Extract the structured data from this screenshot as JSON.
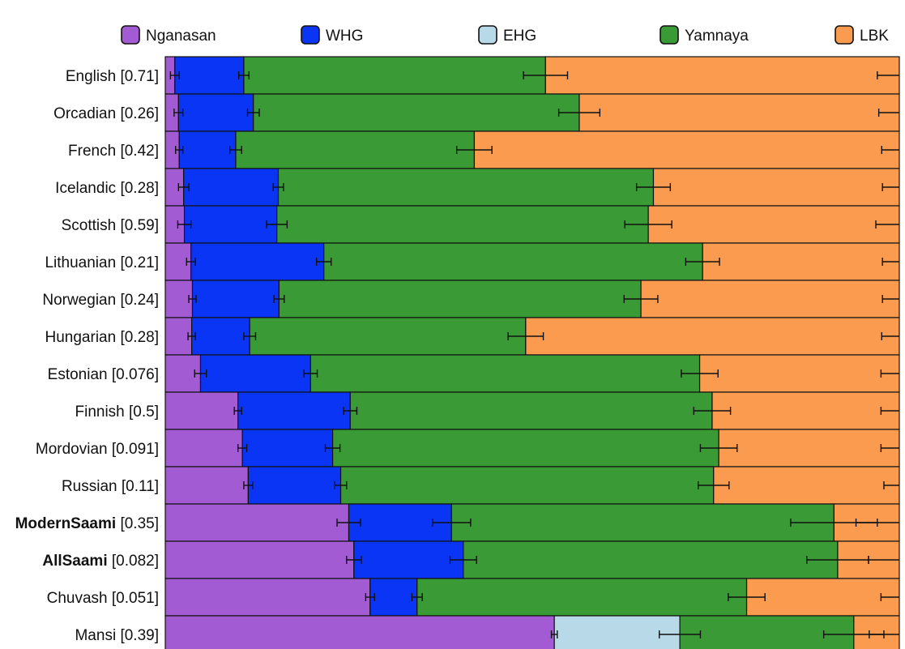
{
  "chart_data": {
    "type": "bar",
    "orientation": "horizontal",
    "stacked": true,
    "title": "",
    "xlabel": "",
    "ylabel": "",
    "xlim": [
      0,
      1
    ],
    "grid": false,
    "legend_position": "top",
    "series": [
      {
        "name": "Nganasan",
        "color": "#a25bd3"
      },
      {
        "name": "WHG",
        "color": "#0a35f5"
      },
      {
        "name": "EHG",
        "color": "#b8d9e8"
      },
      {
        "name": "Yamnaya",
        "color": "#3a9a35"
      },
      {
        "name": "LBK",
        "color": "#fb9b4f"
      }
    ],
    "rows": [
      {
        "pop": "English",
        "p": "[0.71]",
        "bold": false,
        "values": [
          0.013,
          0.094,
          0,
          0.411,
          0.482
        ],
        "errors": [
          0.006,
          0.007,
          0,
          0.03,
          0.03
        ]
      },
      {
        "pop": "Orcadian",
        "p": "[0.26]",
        "bold": false,
        "values": [
          0.018,
          0.102,
          0,
          0.444,
          0.436
        ],
        "errors": [
          0.006,
          0.008,
          0,
          0.028,
          0.028
        ]
      },
      {
        "pop": "French",
        "p": "[0.42]",
        "bold": false,
        "values": [
          0.019,
          0.077,
          0,
          0.325,
          0.579
        ],
        "errors": [
          0.005,
          0.008,
          0,
          0.024,
          0.024
        ]
      },
      {
        "pop": "Icelandic",
        "p": "[0.28]",
        "bold": false,
        "values": [
          0.025,
          0.129,
          0,
          0.511,
          0.335
        ],
        "errors": [
          0.007,
          0.007,
          0,
          0.023,
          0.023
        ]
      },
      {
        "pop": "Scottish",
        "p": "[0.59]",
        "bold": false,
        "values": [
          0.026,
          0.126,
          0,
          0.506,
          0.342
        ],
        "errors": [
          0.009,
          0.014,
          0,
          0.032,
          0.032
        ]
      },
      {
        "pop": "Lithuanian",
        "p": "[0.21]",
        "bold": false,
        "values": [
          0.035,
          0.181,
          0,
          0.516,
          0.268
        ],
        "errors": [
          0.006,
          0.01,
          0,
          0.023,
          0.023
        ]
      },
      {
        "pop": "Norwegian",
        "p": "[0.24]",
        "bold": false,
        "values": [
          0.037,
          0.118,
          0,
          0.493,
          0.352
        ],
        "errors": [
          0.005,
          0.007,
          0,
          0.023,
          0.023
        ]
      },
      {
        "pop": "Hungarian",
        "p": "[0.28]",
        "bold": false,
        "values": [
          0.036,
          0.079,
          0,
          0.376,
          0.509
        ],
        "errors": [
          0.005,
          0.008,
          0,
          0.024,
          0.024
        ]
      },
      {
        "pop": "Estonian",
        "p": "[0.076]",
        "bold": false,
        "values": [
          0.048,
          0.15,
          0,
          0.53,
          0.272
        ],
        "errors": [
          0.008,
          0.009,
          0,
          0.025,
          0.025
        ]
      },
      {
        "pop": "Finnish",
        "p": "[0.5]",
        "bold": false,
        "values": [
          0.099,
          0.153,
          0,
          0.493,
          0.255
        ],
        "errors": [
          0.005,
          0.009,
          0,
          0.025,
          0.025
        ]
      },
      {
        "pop": "Mordovian",
        "p": "[0.091]",
        "bold": false,
        "values": [
          0.105,
          0.123,
          0,
          0.526,
          0.246
        ],
        "errors": [
          0.006,
          0.01,
          0,
          0.025,
          0.025
        ]
      },
      {
        "pop": "Russian",
        "p": "[0.11]",
        "bold": false,
        "values": [
          0.113,
          0.126,
          0,
          0.508,
          0.253
        ],
        "errors": [
          0.006,
          0.008,
          0,
          0.021,
          0.021
        ]
      },
      {
        "pop": "ModernSaami",
        "p": "[0.35]",
        "bold": true,
        "values": [
          0.25,
          0.14,
          0,
          0.521,
          0.089
        ],
        "errors": [
          0.016,
          0.026,
          0,
          0.059,
          0.059
        ]
      },
      {
        "pop": "AllSaami",
        "p": "[0.082]",
        "bold": true,
        "values": [
          0.257,
          0.149,
          0,
          0.51,
          0.084
        ],
        "errors": [
          0.01,
          0.018,
          0,
          0.042,
          0.042
        ]
      },
      {
        "pop": "Chuvash",
        "p": "[0.051]",
        "bold": false,
        "values": [
          0.279,
          0.064,
          0,
          0.449,
          0.208
        ],
        "errors": [
          0.006,
          0.007,
          0,
          0.025,
          0.025
        ]
      },
      {
        "pop": "Mansi",
        "p": "[0.39]",
        "bold": false,
        "values": [
          0.53,
          0.0,
          0.171,
          0.237,
          0.062
        ],
        "errors": [
          0.004,
          0,
          0.028,
          0.041,
          0.041
        ]
      }
    ]
  }
}
